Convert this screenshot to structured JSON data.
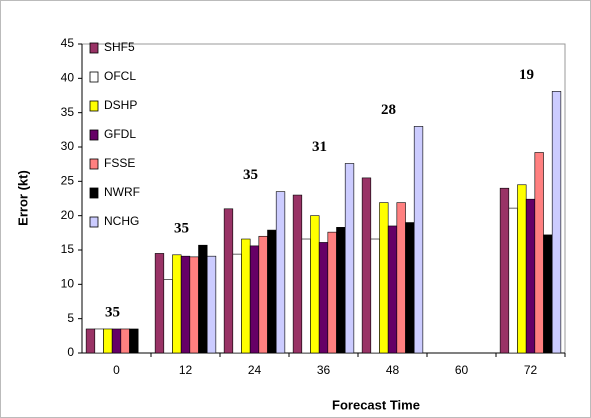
{
  "chart_data": {
    "type": "bar",
    "x_label": "Forecast Time",
    "y_label": "Error (kt)",
    "categories": [
      "0",
      "12",
      "24",
      "36",
      "48",
      "60",
      "72"
    ],
    "sample_counts": [
      35,
      35,
      35,
      31,
      28,
      null,
      19
    ],
    "series": [
      {
        "name": "SHF5",
        "color": "#993366",
        "values": [
          3.5,
          14.5,
          21,
          23,
          25.5,
          null,
          24
        ]
      },
      {
        "name": "OFCL",
        "color": "#ffffff",
        "values": [
          3.5,
          10.7,
          14.4,
          16.6,
          16.6,
          null,
          21.1
        ]
      },
      {
        "name": "DSHP",
        "color": "#ffff00",
        "values": [
          3.5,
          14.3,
          16.6,
          20,
          21.9,
          null,
          24.5
        ]
      },
      {
        "name": "GFDL",
        "color": "#660066",
        "values": [
          3.5,
          14.1,
          15.6,
          16.1,
          18.5,
          null,
          22.4
        ]
      },
      {
        "name": "FSSE",
        "color": "#ff8080",
        "values": [
          3.5,
          14,
          17,
          17.6,
          21.9,
          null,
          29.2
        ]
      },
      {
        "name": "NWRF",
        "color": "#000000",
        "values": [
          3.5,
          15.7,
          17.9,
          18.3,
          19,
          null,
          17.2
        ]
      },
      {
        "name": "NCHG",
        "color": "#ccccff",
        "values": [
          null,
          14.1,
          23.5,
          27.6,
          33,
          null,
          38.1
        ]
      }
    ],
    "ylim": [
      0,
      45
    ],
    "yticks": [
      0,
      5,
      10,
      15,
      20,
      25,
      30,
      35,
      40,
      45
    ]
  }
}
